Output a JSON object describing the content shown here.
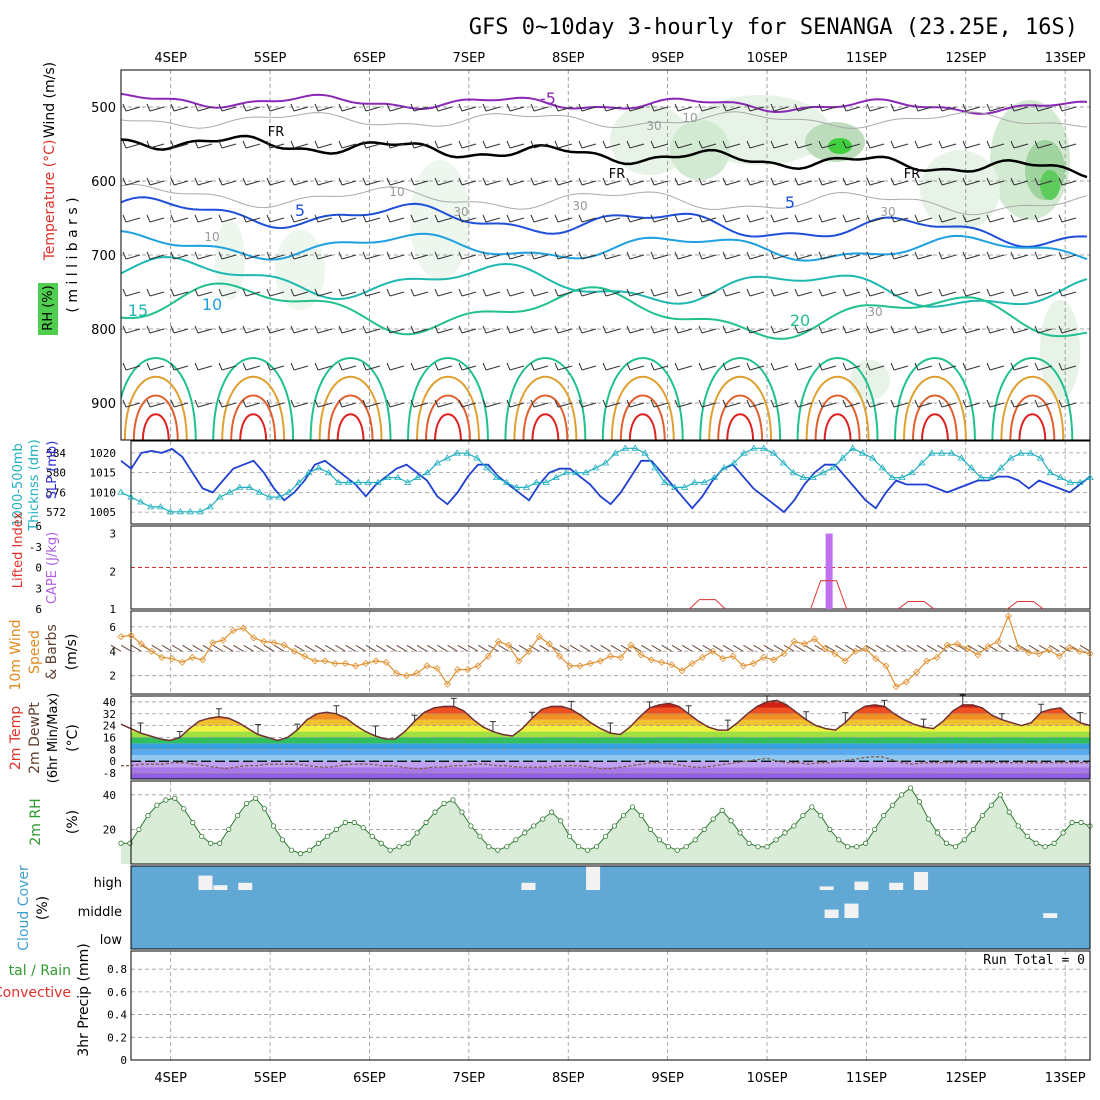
{
  "chart_data": {
    "type": "meteogram",
    "title": "GFS 0~10day 3-hourly for SENANGA (23.25E, 16S)",
    "date_labels": [
      "4SEP",
      "5SEP",
      "6SEP",
      "7SEP",
      "8SEP",
      "9SEP",
      "10SEP",
      "11SEP",
      "12SEP",
      "13SEP"
    ],
    "x_axis": {
      "start_day": 3.5,
      "end_day": 13.25,
      "tick_days": [
        4,
        5,
        6,
        7,
        8,
        9,
        10,
        11,
        12,
        13
      ]
    },
    "upper": {
      "ylabel_wind": "Wind (m/s)",
      "ylabel_temp": "Temperature (°C)",
      "ylabel_rh": "RH (%)",
      "ylabel_units": "( m i l l i b a r s )",
      "pressure_levels": [
        500,
        600,
        700,
        800,
        900
      ],
      "pressure_range": [
        450,
        950
      ],
      "contour_labels": [
        "-5",
        "FR",
        "FR",
        "FR",
        "5",
        "5",
        "10",
        "15",
        "20",
        "10",
        "30",
        "30",
        "30",
        "10",
        "10",
        "30",
        "30"
      ]
    },
    "slp_panel": {
      "left_label_1": "1000-500mb",
      "left_label_2": "Thicknss (dm)",
      "right_label": "SLP (mb)",
      "thickness_ticks": [
        "584",
        "580",
        "576",
        "572"
      ],
      "slp_ticks": [
        "1020",
        "1015",
        "1010",
        "1005"
      ],
      "slp_series": {
        "name": "SLP",
        "values": [
          1018,
          1016,
          1020,
          1020.5,
          1020,
          1021,
          1019,
          1015,
          1011,
          1010,
          1013,
          1016,
          1017,
          1018,
          1015,
          1011,
          1008,
          1010,
          1013,
          1017,
          1018,
          1016,
          1014,
          1012,
          1009,
          1012,
          1014,
          1016,
          1017,
          1015,
          1013,
          1009,
          1007,
          1010,
          1014,
          1017,
          1017,
          1014,
          1012,
          1010,
          1008,
          1012,
          1015,
          1016,
          1016,
          1014,
          1012,
          1009,
          1007,
          1010,
          1014,
          1018,
          1018,
          1015,
          1012,
          1009,
          1006,
          1009,
          1013,
          1016,
          1017,
          1014,
          1011,
          1009,
          1007,
          1005,
          1008,
          1012,
          1015,
          1017,
          1017,
          1014,
          1011,
          1008,
          1006,
          1010,
          1013,
          1012,
          1012,
          1012,
          1011,
          1010,
          1011,
          1012,
          1013,
          1013,
          1014,
          1014,
          1013,
          1011,
          1013,
          1012,
          1011,
          1010,
          1012,
          1014
        ]
      },
      "thickness_series": {
        "name": "1000-500mb Thickness",
        "values": [
          576,
          575,
          574,
          573,
          573,
          572,
          572,
          572,
          572,
          573,
          575,
          576,
          577,
          577,
          576,
          575,
          575,
          576,
          578,
          580,
          581,
          580,
          578,
          578,
          578,
          578,
          578,
          579,
          579,
          578,
          579,
          580,
          582,
          583,
          584,
          584,
          583,
          581,
          579,
          578,
          577,
          577,
          578,
          578,
          579,
          580,
          580,
          580,
          581,
          582,
          584,
          585,
          585,
          584,
          581,
          578,
          577,
          577,
          578,
          578,
          579,
          581,
          582,
          584,
          585,
          585,
          584,
          582,
          580,
          579,
          579,
          580,
          581,
          583,
          585,
          584,
          583,
          581,
          579,
          579,
          580,
          582,
          584,
          584,
          584,
          583,
          581,
          579,
          579,
          581,
          583,
          584,
          584,
          583,
          580,
          579,
          578,
          578,
          579
        ]
      }
    },
    "cape_panel": {
      "left_label": "Lifted Index",
      "right_label": "CAPE (J/kg)",
      "li_ticks": [
        "-6",
        "-3",
        "0",
        "3",
        "6"
      ],
      "cape_ticks": [
        "3",
        "2",
        "1"
      ],
      "cape_bar": {
        "day": 10.62,
        "value": 3.0
      },
      "li_spikes": [
        {
          "day": 9.4,
          "value": 1.25
        },
        {
          "day": 10.62,
          "value": 1.75
        },
        {
          "day": 11.5,
          "value": 1.2
        },
        {
          "day": 12.6,
          "value": 1.2
        }
      ]
    },
    "wind10m_panel": {
      "label_1": "10m Wind",
      "label_2": "Speed",
      "label_3": "& Barbs",
      "units": "(m/s)",
      "ticks": [
        "6",
        "4",
        "2"
      ],
      "speed_series": {
        "name": "10m Wind Speed",
        "values": [
          5.2,
          5.3,
          4.6,
          4.0,
          3.5,
          3.4,
          3.1,
          3.5,
          3.3,
          4.7,
          4.9,
          5.7,
          5.9,
          5.1,
          4.8,
          4.7,
          4.5,
          4.0,
          3.6,
          3.2,
          3.2,
          3.0,
          3.0,
          2.8,
          3.0,
          3.2,
          3.1,
          2.2,
          2.0,
          2.2,
          2.8,
          2.6,
          1.3,
          2.5,
          2.5,
          2.8,
          3.6,
          4.8,
          4.5,
          3.2,
          4.0,
          5.2,
          4.6,
          3.6,
          2.8,
          2.8,
          3.0,
          3.2,
          3.6,
          3.5,
          4.5,
          3.7,
          3.3,
          3.1,
          2.9,
          2.4,
          3.0,
          3.5,
          4.0,
          3.4,
          3.6,
          2.8,
          3.0,
          3.5,
          3.3,
          3.8,
          4.8,
          4.6,
          5.0,
          4.2,
          3.8,
          3.2,
          4.0,
          4.2,
          3.4,
          2.8,
          1.1,
          1.5,
          2.3,
          3.2,
          3.5,
          4.5,
          4.6,
          4.2,
          3.7,
          4.4,
          4.8,
          6.9,
          4.3,
          3.9,
          3.8,
          4.1,
          3.6,
          4.3,
          4.0,
          3.8
        ]
      }
    },
    "temp_panel": {
      "label_1": "2m Temp",
      "label_2": "2m DewPt",
      "label_3": "(6hr Min/Max)",
      "units": "(°C)",
      "ticks": [
        "40",
        "32",
        "24",
        "16",
        "8",
        "0",
        "-8"
      ],
      "temp_series": {
        "name": "2m Temp",
        "values": [
          25,
          22,
          19,
          17,
          15,
          14,
          16,
          22,
          27,
          29,
          30,
          29,
          26,
          22,
          18,
          16,
          14,
          16,
          21,
          28,
          32,
          33,
          32,
          29,
          24,
          20,
          17,
          15,
          15,
          20,
          27,
          33,
          36,
          37,
          37,
          34,
          28,
          23,
          20,
          18,
          17,
          22,
          29,
          35,
          37,
          37,
          35,
          31,
          26,
          22,
          19,
          18,
          23,
          30,
          36,
          38,
          39,
          37,
          32,
          27,
          23,
          21,
          21,
          26,
          32,
          37,
          40,
          41,
          38,
          33,
          28,
          24,
          22,
          21,
          26,
          33,
          37,
          38,
          37,
          32,
          28,
          25,
          23,
          22,
          27,
          34,
          38,
          38,
          36,
          31,
          28,
          26,
          24,
          26,
          33,
          35,
          36,
          30,
          26,
          24
        ]
      },
      "dewpt_series": {
        "name": "2m DewPt",
        "values": [
          -3,
          -3,
          -2,
          -2,
          -2,
          -1,
          -1,
          -2,
          -3,
          -4,
          -5,
          -4,
          -3,
          -3,
          -2,
          -2,
          -2,
          -2,
          -3,
          -4,
          -4,
          -3,
          -2,
          -2,
          -2,
          -3,
          -3,
          -4,
          -5,
          -5,
          -4,
          -4,
          -3,
          -3,
          -2,
          -2,
          -3,
          -3,
          -4,
          -4,
          -4,
          -4,
          -3,
          -3,
          -3,
          -4,
          -5,
          -5,
          -4,
          -3,
          -2,
          -1,
          -1,
          -2,
          -3,
          -4,
          -4,
          -3,
          -2,
          -1,
          0,
          1,
          2,
          0,
          -1,
          -1,
          -2,
          -1,
          -1,
          0,
          1,
          2,
          3,
          3,
          1,
          -1,
          -2,
          -1,
          -1,
          -1,
          -1,
          -1,
          -1,
          -1,
          -1,
          -1,
          -1,
          -1,
          -1,
          -1,
          -1,
          -1,
          -1,
          -1
        ]
      }
    },
    "rh_panel": {
      "label": "2m RH",
      "units": "(%)",
      "ticks": [
        "40",
        "20"
      ],
      "rh_series": {
        "name": "2m RH",
        "values": [
          12,
          12,
          20,
          28,
          34,
          37,
          38,
          32,
          24,
          16,
          12,
          12,
          20,
          28,
          35,
          38,
          32,
          22,
          14,
          8,
          6,
          8,
          12,
          16,
          20,
          24,
          24,
          21,
          16,
          12,
          8,
          10,
          12,
          18,
          24,
          30,
          35,
          37,
          30,
          22,
          16,
          10,
          8,
          10,
          14,
          18,
          22,
          26,
          30,
          25,
          16,
          10,
          8,
          10,
          16,
          22,
          28,
          33,
          28,
          20,
          14,
          10,
          8,
          10,
          14,
          20,
          26,
          31,
          25,
          18,
          12,
          10,
          10,
          14,
          18,
          22,
          28,
          33,
          28,
          20,
          14,
          10,
          10,
          12,
          20,
          28,
          34,
          40,
          44,
          36,
          26,
          18,
          12,
          10,
          14,
          20,
          28,
          34,
          40,
          30,
          22,
          16,
          12,
          10,
          12,
          18,
          24,
          24,
          22
        ]
      }
    },
    "cloud_panel": {
      "label": "Cloud Cover",
      "units": "(%)",
      "levels": [
        "high",
        "middle",
        "low"
      ],
      "blocks": [
        {
          "level": "high",
          "day": 4.35,
          "value": 0.6
        },
        {
          "level": "high",
          "day": 4.5,
          "value": 0.2
        },
        {
          "level": "high",
          "day": 4.75,
          "value": 0.3
        },
        {
          "level": "high",
          "day": 7.6,
          "value": 0.3
        },
        {
          "level": "high",
          "day": 8.25,
          "value": 1.0
        },
        {
          "level": "high",
          "day": 10.6,
          "value": 0.15
        },
        {
          "level": "high",
          "day": 10.95,
          "value": 0.35
        },
        {
          "level": "high",
          "day": 11.3,
          "value": 0.3
        },
        {
          "level": "high",
          "day": 11.55,
          "value": 0.75
        },
        {
          "level": "middle",
          "day": 10.65,
          "value": 0.35
        },
        {
          "level": "middle",
          "day": 10.85,
          "value": 0.6
        },
        {
          "level": "middle",
          "day": 12.85,
          "value": 0.2
        }
      ]
    },
    "precip_panel": {
      "label_1": "tal / Rain",
      "label_2": "Convective",
      "ylabel": "3hr Precip (mm)",
      "ticks": [
        "0.8",
        "0.6",
        "0.4",
        "0.2",
        "0"
      ],
      "run_total": "Run Total = 0",
      "values": []
    }
  }
}
